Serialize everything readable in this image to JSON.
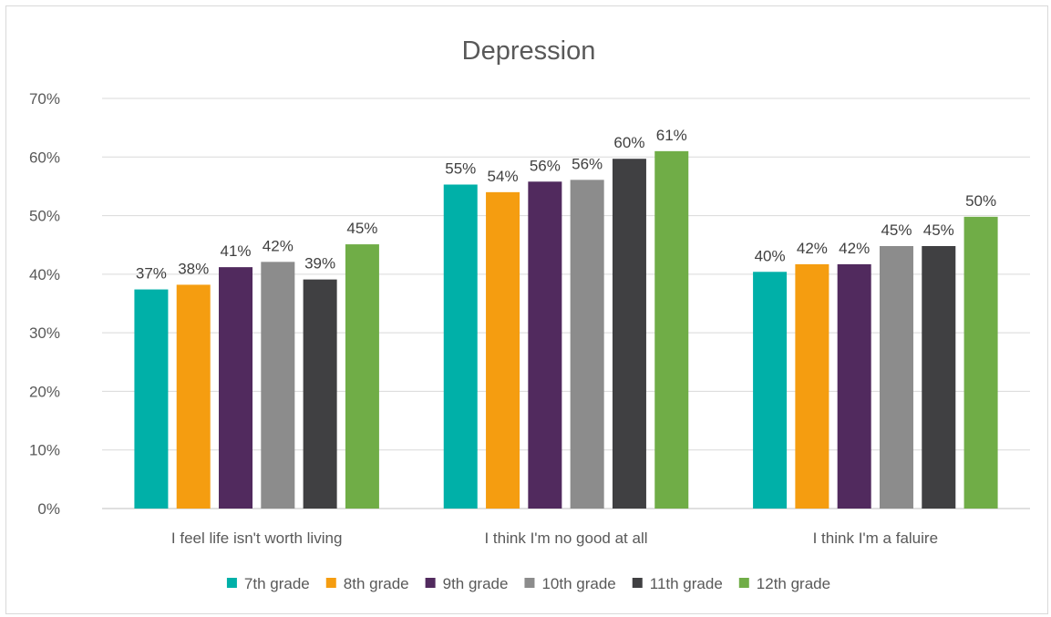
{
  "chart_data": {
    "type": "bar",
    "title": "Depression",
    "categories": [
      "I feel life isn't worth living",
      "I think I'm no good at all",
      "I think I'm a faluire"
    ],
    "series": [
      {
        "name": "7th grade",
        "color": "#00B0A8",
        "values": [
          37.4,
          55.3,
          40.4
        ],
        "labels": [
          "37%",
          "55%",
          "40%"
        ]
      },
      {
        "name": "8th grade",
        "color": "#F59D10",
        "values": [
          38.2,
          54.0,
          41.7
        ],
        "labels": [
          "38%",
          "54%",
          "42%"
        ]
      },
      {
        "name": "9th grade",
        "color": "#512A5E",
        "values": [
          41.2,
          55.8,
          41.7
        ],
        "labels": [
          "41%",
          "56%",
          "42%"
        ]
      },
      {
        "name": "10th grade",
        "color": "#8C8C8C",
        "values": [
          42.1,
          56.1,
          44.8
        ],
        "labels": [
          "42%",
          "56%",
          "45%"
        ]
      },
      {
        "name": "11th grade",
        "color": "#404042",
        "values": [
          39.1,
          59.7,
          44.8
        ],
        "labels": [
          "39%",
          "60%",
          "45%"
        ]
      },
      {
        "name": "12th grade",
        "color": "#70AD47",
        "values": [
          45.1,
          61.0,
          49.8
        ],
        "labels": [
          "45%",
          "61%",
          "50%"
        ]
      }
    ],
    "ylim": [
      0,
      70
    ],
    "yticks": [
      0,
      10,
      20,
      30,
      40,
      50,
      60,
      70
    ],
    "ytick_labels": [
      "0%",
      "10%",
      "20%",
      "30%",
      "40%",
      "50%",
      "60%",
      "70%"
    ],
    "grid": true,
    "legend": "bottom"
  }
}
